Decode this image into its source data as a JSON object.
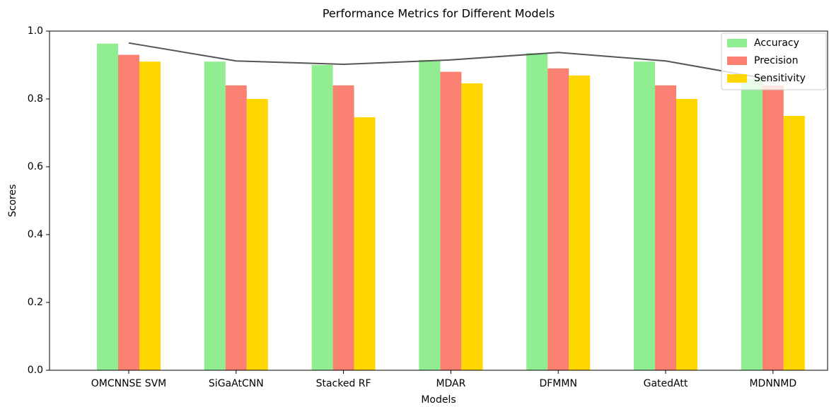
{
  "chart_data": {
    "type": "bar",
    "title": "Performance Metrics for Different Models",
    "xlabel": "Models",
    "ylabel": "Scores",
    "categories": [
      "OMCNNSE SVM",
      "SiGaAtCNN",
      "Stacked RF",
      "MDAR",
      "DFMMN",
      "GatedAtt",
      "MDNNMD"
    ],
    "series": [
      {
        "name": "Accuracy",
        "color": "#90ee90",
        "values": [
          0.963,
          0.91,
          0.9,
          0.915,
          0.935,
          0.91,
          0.86
        ]
      },
      {
        "name": "Precision",
        "color": "#fa8072",
        "values": [
          0.93,
          0.84,
          0.84,
          0.88,
          0.89,
          0.84,
          0.84
        ]
      },
      {
        "name": "Sensitivity",
        "color": "#ffd700",
        "values": [
          0.91,
          0.8,
          0.746,
          0.846,
          0.869,
          0.8,
          0.75
        ]
      }
    ],
    "line": {
      "color": "#555555",
      "values": [
        0.965,
        0.912,
        0.902,
        0.915,
        0.937,
        0.912,
        0.856
      ]
    },
    "ylim": [
      0,
      1.0
    ],
    "yticks": [
      {
        "value": 0,
        "label": "0.0"
      },
      0.2,
      0.4,
      0.6,
      0.8,
      {
        "value": 1,
        "label": "1.0"
      }
    ],
    "legend": "upper right"
  }
}
